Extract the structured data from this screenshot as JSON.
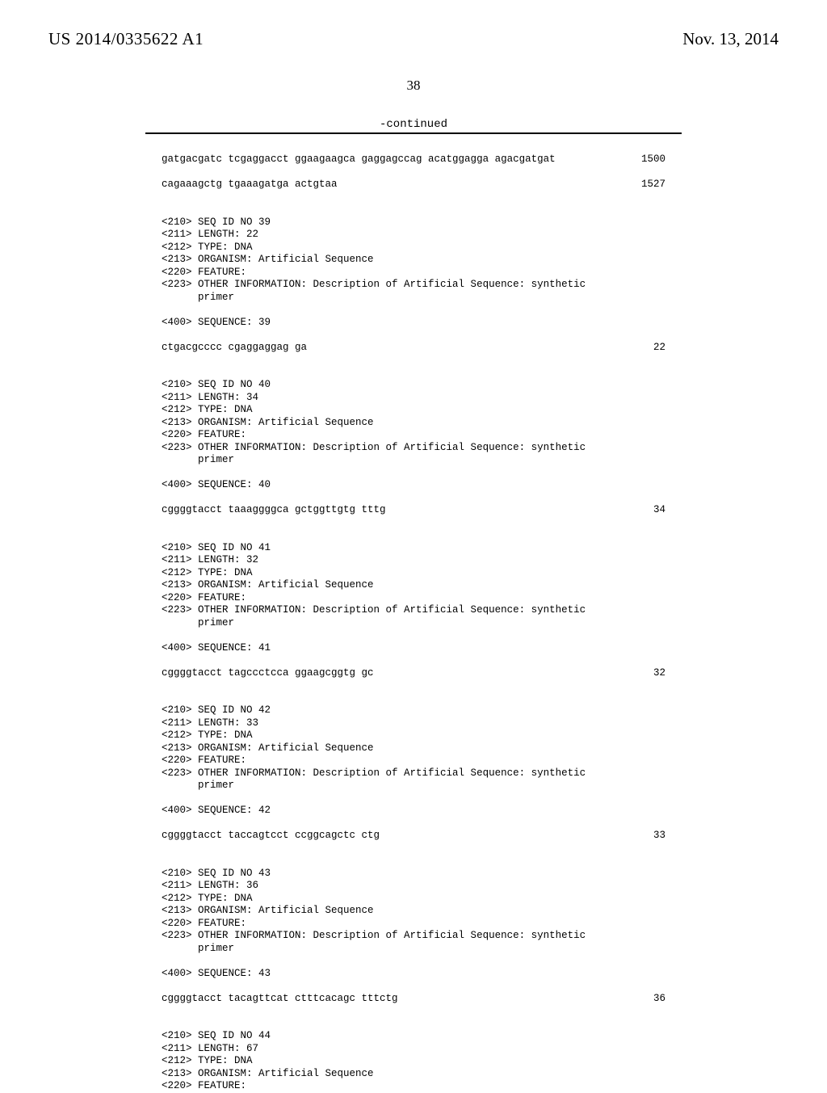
{
  "header": {
    "pub_number": "US 2014/0335622 A1",
    "pub_date": "Nov. 13, 2014",
    "page_number": "38",
    "continued_label": "-continued"
  },
  "listing": {
    "rows": [
      {
        "left": "gatgacgatc tcgaggacct ggaagaagca gaggagccag acatggagga agacgatgat",
        "right": "1500"
      },
      {
        "blank": 1
      },
      {
        "left": "cagaaagctg tgaaagatga actgtaa",
        "right": "1527"
      },
      {
        "blank": 2
      },
      {
        "left": "<210> SEQ ID NO 39"
      },
      {
        "left": "<211> LENGTH: 22"
      },
      {
        "left": "<212> TYPE: DNA"
      },
      {
        "left": "<213> ORGANISM: Artificial Sequence"
      },
      {
        "left": "<220> FEATURE:"
      },
      {
        "left": "<223> OTHER INFORMATION: Description of Artificial Sequence: synthetic"
      },
      {
        "left": "      primer"
      },
      {
        "blank": 1
      },
      {
        "left": "<400> SEQUENCE: 39"
      },
      {
        "blank": 1
      },
      {
        "left": "ctgacgcccc cgaggaggag ga",
        "right": "22"
      },
      {
        "blank": 2
      },
      {
        "left": "<210> SEQ ID NO 40"
      },
      {
        "left": "<211> LENGTH: 34"
      },
      {
        "left": "<212> TYPE: DNA"
      },
      {
        "left": "<213> ORGANISM: Artificial Sequence"
      },
      {
        "left": "<220> FEATURE:"
      },
      {
        "left": "<223> OTHER INFORMATION: Description of Artificial Sequence: synthetic"
      },
      {
        "left": "      primer"
      },
      {
        "blank": 1
      },
      {
        "left": "<400> SEQUENCE: 40"
      },
      {
        "blank": 1
      },
      {
        "left": "cggggtacct taaaggggca gctggttgtg tttg",
        "right": "34"
      },
      {
        "blank": 2
      },
      {
        "left": "<210> SEQ ID NO 41"
      },
      {
        "left": "<211> LENGTH: 32"
      },
      {
        "left": "<212> TYPE: DNA"
      },
      {
        "left": "<213> ORGANISM: Artificial Sequence"
      },
      {
        "left": "<220> FEATURE:"
      },
      {
        "left": "<223> OTHER INFORMATION: Description of Artificial Sequence: synthetic"
      },
      {
        "left": "      primer"
      },
      {
        "blank": 1
      },
      {
        "left": "<400> SEQUENCE: 41"
      },
      {
        "blank": 1
      },
      {
        "left": "cggggtacct tagccctcca ggaagcggtg gc",
        "right": "32"
      },
      {
        "blank": 2
      },
      {
        "left": "<210> SEQ ID NO 42"
      },
      {
        "left": "<211> LENGTH: 33"
      },
      {
        "left": "<212> TYPE: DNA"
      },
      {
        "left": "<213> ORGANISM: Artificial Sequence"
      },
      {
        "left": "<220> FEATURE:"
      },
      {
        "left": "<223> OTHER INFORMATION: Description of Artificial Sequence: synthetic"
      },
      {
        "left": "      primer"
      },
      {
        "blank": 1
      },
      {
        "left": "<400> SEQUENCE: 42"
      },
      {
        "blank": 1
      },
      {
        "left": "cggggtacct taccagtcct ccggcagctc ctg",
        "right": "33"
      },
      {
        "blank": 2
      },
      {
        "left": "<210> SEQ ID NO 43"
      },
      {
        "left": "<211> LENGTH: 36"
      },
      {
        "left": "<212> TYPE: DNA"
      },
      {
        "left": "<213> ORGANISM: Artificial Sequence"
      },
      {
        "left": "<220> FEATURE:"
      },
      {
        "left": "<223> OTHER INFORMATION: Description of Artificial Sequence: synthetic"
      },
      {
        "left": "      primer"
      },
      {
        "blank": 1
      },
      {
        "left": "<400> SEQUENCE: 43"
      },
      {
        "blank": 1
      },
      {
        "left": "cggggtacct tacagttcat ctttcacagc tttctg",
        "right": "36"
      },
      {
        "blank": 2
      },
      {
        "left": "<210> SEQ ID NO 44"
      },
      {
        "left": "<211> LENGTH: 67"
      },
      {
        "left": "<212> TYPE: DNA"
      },
      {
        "left": "<213> ORGANISM: Artificial Sequence"
      },
      {
        "left": "<220> FEATURE:"
      }
    ]
  }
}
